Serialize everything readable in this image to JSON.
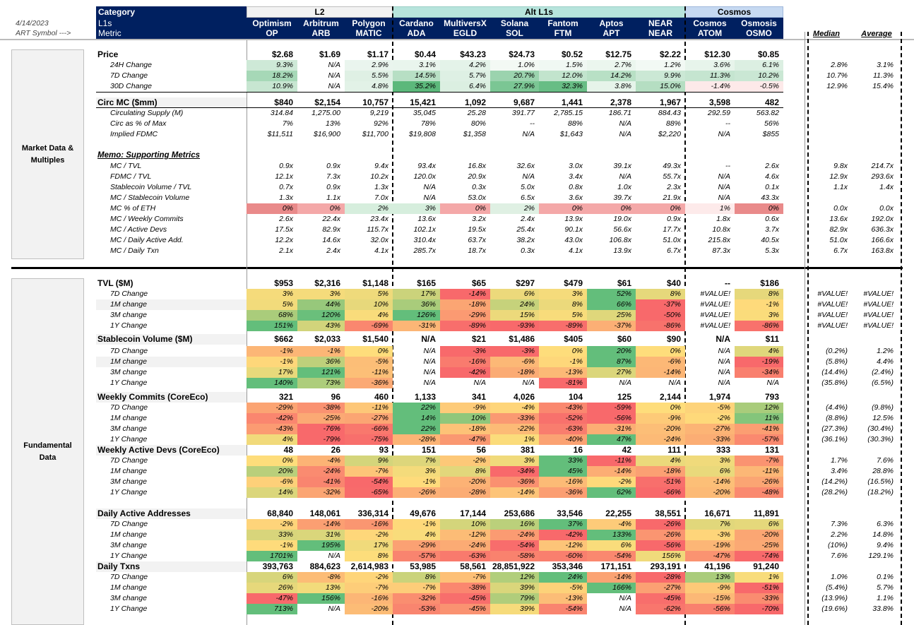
{
  "top": {
    "date": "4/14/2023",
    "symbol_label": "ART Symbol --->",
    "category": "Category",
    "l1s": "L1s",
    "metric": "Metric",
    "groups": [
      "L2",
      "Alt L1s",
      "Cosmos"
    ],
    "median": "Median",
    "average": "Average"
  },
  "assets": [
    {
      "name": "Optimism",
      "ticker": "OP"
    },
    {
      "name": "Arbitrum",
      "ticker": "ARB"
    },
    {
      "name": "Polygon",
      "ticker": "MATIC"
    },
    {
      "name": "Cardano",
      "ticker": "ADA"
    },
    {
      "name": "MultiversX",
      "ticker": "EGLD"
    },
    {
      "name": "Solana",
      "ticker": "SOL"
    },
    {
      "name": "Fantom",
      "ticker": "FTM"
    },
    {
      "name": "Aptos",
      "ticker": "APT"
    },
    {
      "name": "NEAR",
      "ticker": "NEAR"
    },
    {
      "name": "Cosmos",
      "ticker": "ATOM"
    },
    {
      "name": "Osmosis",
      "ticker": "OSMO"
    }
  ],
  "sections": {
    "market": "Market Data & Multiples",
    "fundamental": "Fundamental Data"
  },
  "colors": {
    "navy": "#002060",
    "l2_band": "#f2f2f2",
    "alt_band": "#b7e4dc",
    "cosmos_band": "#c6d9f1",
    "red": "#e06666",
    "green": "#4caf50"
  },
  "rows": [
    {
      "label": "Price",
      "type": "main",
      "cells": [
        "$2.68",
        "$1.69",
        "$1.17",
        "$0.44",
        "$43.23",
        "$24.73",
        "$0.52",
        "$12.75",
        "$2.22",
        "$12.30",
        "$0.85"
      ]
    },
    {
      "label": "24H Change",
      "type": "sub",
      "cells": [
        "9.3%",
        "N/A",
        "2.9%",
        "3.1%",
        "4.2%",
        "1.0%",
        "1.5%",
        "2.7%",
        "1.2%",
        "3.6%",
        "6.1%"
      ],
      "median": "2.8%",
      "average": "3.1%"
    },
    {
      "label": "7D Change",
      "type": "sub",
      "cells": [
        "18.2%",
        "N/A",
        "5.5%",
        "14.5%",
        "5.7%",
        "20.7%",
        "12.0%",
        "14.2%",
        "9.9%",
        "11.3%",
        "10.2%"
      ],
      "median": "10.7%",
      "average": "11.3%"
    },
    {
      "label": "30D Change",
      "type": "sub",
      "cells": [
        "10.9%",
        "N/A",
        "4.8%",
        "35.2%",
        "6.4%",
        "27.9%",
        "32.3%",
        "3.8%",
        "15.0%",
        "-1.4%",
        "-0.5%"
      ],
      "median": "12.9%",
      "average": "15.4%"
    },
    {
      "label": "Circ MC ($mm)",
      "type": "main",
      "cells": [
        "$840",
        "$2,154",
        "10,757",
        "15,421",
        "1,092",
        "9,687",
        "1,441",
        "2,378",
        "1,967",
        "3,598",
        "482"
      ]
    },
    {
      "label": "Circulating Supply (M)",
      "type": "sub",
      "cells": [
        "314.84",
        "1,275.00",
        "9,219",
        "35,045",
        "25.28",
        "391.77",
        "2,785.15",
        "186.71",
        "884.43",
        "292.59",
        "563.82"
      ]
    },
    {
      "label": "Circ as % of Max",
      "type": "sub",
      "cells": [
        "7%",
        "13%",
        "92%",
        "78%",
        "80%",
        "--",
        "88%",
        "N/A",
        "88%",
        "--",
        "56%"
      ]
    },
    {
      "label": "Implied FDMC",
      "type": "sub",
      "cells": [
        "$11,511",
        "$16,900",
        "$11,700",
        "$19,808",
        "$1,358",
        "N/A",
        "$1,643",
        "N/A",
        "$2,220",
        "N/A",
        "$855"
      ]
    },
    {
      "label": "Memo: Supporting Metrics",
      "type": "memo"
    },
    {
      "label": "MC / TVL",
      "type": "sub",
      "cells": [
        "0.9x",
        "0.9x",
        "9.4x",
        "93.4x",
        "16.8x",
        "32.6x",
        "3.0x",
        "39.1x",
        "49.3x",
        "--",
        "2.6x"
      ],
      "median": "9.8x",
      "average": "214.7x"
    },
    {
      "label": "FDMC / TVL",
      "type": "sub",
      "cells": [
        "12.1x",
        "7.3x",
        "10.2x",
        "120.0x",
        "20.9x",
        "N/A",
        "3.4x",
        "N/A",
        "55.7x",
        "N/A",
        "4.6x"
      ],
      "median": "12.9x",
      "average": "293.6x"
    },
    {
      "label": "Stablecoin Volume / TVL",
      "type": "sub",
      "cells": [
        "0.7x",
        "0.9x",
        "1.3x",
        "N/A",
        "0.3x",
        "5.0x",
        "0.8x",
        "1.0x",
        "2.3x",
        "N/A",
        "0.1x"
      ],
      "median": "1.1x",
      "average": "1.4x"
    },
    {
      "label": "MC / Stablecoin Volume",
      "type": "sub",
      "cells": [
        "1.3x",
        "1.1x",
        "7.0x",
        "N/A",
        "53.0x",
        "6.5x",
        "3.6x",
        "39.7x",
        "21.9x",
        "N/A",
        "43.3x"
      ]
    },
    {
      "label": "MC % of ETH",
      "type": "sub",
      "cells": [
        "0%",
        "0%",
        "2%",
        "3%",
        "0%",
        "2%",
        "0%",
        "0%",
        "0%",
        "1%",
        "0%"
      ],
      "median": "0.0x",
      "average": "0.0x"
    },
    {
      "label": "MC / Weekly Commits",
      "type": "sub",
      "cells": [
        "2.6x",
        "22.4x",
        "23.4x",
        "13.6x",
        "3.2x",
        "2.4x",
        "13.9x",
        "19.0x",
        "0.9x",
        "1.8x",
        "0.6x"
      ],
      "median": "13.6x",
      "average": "192.0x"
    },
    {
      "label": "MC / Active Devs",
      "type": "sub",
      "cells": [
        "17.5x",
        "82.9x",
        "115.7x",
        "102.1x",
        "19.5x",
        "25.4x",
        "90.1x",
        "56.6x",
        "17.7x",
        "10.8x",
        "3.7x"
      ],
      "median": "82.9x",
      "average": "636.3x"
    },
    {
      "label": "MC / Daily Active Add.",
      "type": "sub",
      "cells": [
        "12.2x",
        "14.6x",
        "32.0x",
        "310.4x",
        "63.7x",
        "38.2x",
        "43.0x",
        "106.8x",
        "51.0x",
        "215.8x",
        "40.5x"
      ],
      "median": "51.0x",
      "average": "166.6x"
    },
    {
      "label": "MC / Daily Txn",
      "type": "sub",
      "cells": [
        "2.1x",
        "2.4x",
        "4.1x",
        "285.7x",
        "18.7x",
        "0.3x",
        "4.1x",
        "13.9x",
        "6.7x",
        "87.3x",
        "5.3x"
      ],
      "median": "6.7x",
      "average": "163.8x"
    },
    {
      "label": "TVL ($M)",
      "type": "main",
      "cells": [
        "$953",
        "$2,316",
        "$1,148",
        "$165",
        "$65",
        "$297",
        "$479",
        "$61",
        "$40",
        "--",
        "$186"
      ]
    },
    {
      "label": "7D Change",
      "type": "sub",
      "cells": [
        "3%",
        "3%",
        "5%",
        "17%",
        "-14%",
        "6%",
        "3%",
        "52%",
        "8%",
        "#VALUE!",
        "8%"
      ],
      "median": "#VALUE!",
      "average": "#VALUE!"
    },
    {
      "label": "1M change",
      "type": "sub",
      "cells": [
        "5%",
        "44%",
        "10%",
        "36%",
        "-18%",
        "24%",
        "8%",
        "66%",
        "-37%",
        "#VALUE!",
        "-1%"
      ],
      "median": "#VALUE!",
      "average": "#VALUE!"
    },
    {
      "label": "3M change",
      "type": "sub",
      "cells": [
        "68%",
        "120%",
        "4%",
        "126%",
        "-29%",
        "15%",
        "5%",
        "25%",
        "-50%",
        "#VALUE!",
        "3%"
      ],
      "median": "#VALUE!",
      "average": "#VALUE!"
    },
    {
      "label": "1Y Change",
      "type": "sub",
      "cells": [
        "151%",
        "43%",
        "-69%",
        "-31%",
        "-89%",
        "-93%",
        "-89%",
        "-37%",
        "-86%",
        "#VALUE!",
        "-86%"
      ],
      "median": "#VALUE!",
      "average": "#VALUE!"
    },
    {
      "label": "Stablecoin Volume ($M)",
      "type": "main",
      "cells": [
        "$662",
        "$2,033",
        "$1,540",
        "N/A",
        "$21",
        "$1,486",
        "$405",
        "$60",
        "$90",
        "N/A",
        "$11"
      ]
    },
    {
      "label": "7D Change",
      "type": "sub",
      "cells": [
        "-1%",
        "-1%",
        "0%",
        "N/A",
        "-3%",
        "-3%",
        "0%",
        "20%",
        "0%",
        "N/A",
        "4%"
      ],
      "median": "(0.2%)",
      "average": "1.2%"
    },
    {
      "label": "1M change",
      "type": "sub",
      "cells": [
        "-1%",
        "36%",
        "-5%",
        "N/A",
        "-16%",
        "-6%",
        "-1%",
        "87%",
        "-6%",
        "N/A",
        "-19%"
      ],
      "median": "(5.8%)",
      "average": "4.4%"
    },
    {
      "label": "3M change",
      "type": "sub",
      "cells": [
        "17%",
        "121%",
        "-11%",
        "N/A",
        "-42%",
        "-18%",
        "-13%",
        "27%",
        "-14%",
        "N/A",
        "-34%"
      ],
      "median": "(14.4%)",
      "average": "(2.4%)"
    },
    {
      "label": "1Y Change",
      "type": "sub",
      "cells": [
        "140%",
        "73%",
        "-36%",
        "N/A",
        "N/A",
        "N/A",
        "-81%",
        "N/A",
        "N/A",
        "N/A",
        "N/A"
      ],
      "median": "(35.8%)",
      "average": "(6.5%)"
    },
    {
      "label": "Weekly Commits (CoreEco)",
      "type": "main",
      "cells": [
        "321",
        "96",
        "460",
        "1,133",
        "341",
        "4,026",
        "104",
        "125",
        "2,144",
        "1,974",
        "793"
      ]
    },
    {
      "label": "7D Change",
      "type": "sub",
      "cells": [
        "-29%",
        "-38%",
        "-11%",
        "22%",
        "-9%",
        "-4%",
        "-43%",
        "-59%",
        "0%",
        "-5%",
        "12%"
      ],
      "median": "(4.4%)",
      "average": "(9.8%)"
    },
    {
      "label": "1M change",
      "type": "sub",
      "cells": [
        "-42%",
        "-25%",
        "-27%",
        "14%",
        "10%",
        "-33%",
        "-52%",
        "-56%",
        "-9%",
        "-2%",
        "11%"
      ],
      "median": "(8.8%)",
      "average": "12.5%"
    },
    {
      "label": "3M change",
      "type": "sub",
      "cells": [
        "-43%",
        "-76%",
        "-66%",
        "22%",
        "-18%",
        "-22%",
        "-63%",
        "-31%",
        "-20%",
        "-27%",
        "-41%"
      ],
      "median": "(27.3%)",
      "average": "(30.4%)"
    },
    {
      "label": "1Y Change",
      "type": "sub",
      "cells": [
        "4%",
        "-79%",
        "-75%",
        "-28%",
        "-47%",
        "1%",
        "-40%",
        "47%",
        "-24%",
        "-33%",
        "-57%"
      ],
      "median": "(36.1%)",
      "average": "(30.3%)"
    },
    {
      "label": "Weekly Active Devs (CoreEco)",
      "type": "main",
      "cells": [
        "48",
        "26",
        "93",
        "151",
        "56",
        "381",
        "16",
        "42",
        "111",
        "333",
        "131"
      ]
    },
    {
      "label": "7D Change",
      "type": "sub",
      "cells": [
        "0%",
        "-4%",
        "9%",
        "7%",
        "-2%",
        "3%",
        "33%",
        "-11%",
        "4%",
        "3%",
        "-7%"
      ],
      "median": "1.7%",
      "average": "7.6%"
    },
    {
      "label": "1M change",
      "type": "sub",
      "cells": [
        "20%",
        "-24%",
        "-7%",
        "3%",
        "8%",
        "-34%",
        "45%",
        "-14%",
        "-18%",
        "6%",
        "-11%"
      ],
      "median": "3.4%",
      "average": "28.8%"
    },
    {
      "label": "3M change",
      "type": "sub",
      "cells": [
        "-6%",
        "-41%",
        "-54%",
        "-1%",
        "-20%",
        "-36%",
        "-16%",
        "-2%",
        "-51%",
        "-14%",
        "-26%"
      ],
      "median": "(14.2%)",
      "average": "(16.5%)"
    },
    {
      "label": "1Y Change",
      "type": "sub",
      "cells": [
        "14%",
        "-32%",
        "-65%",
        "-26%",
        "-28%",
        "-14%",
        "-36%",
        "62%",
        "-66%",
        "-20%",
        "-48%"
      ],
      "median": "(28.2%)",
      "average": "(18.2%)"
    },
    {
      "label": "Daily Active Addresses",
      "type": "main",
      "cells": [
        "68,840",
        "148,061",
        "336,314",
        "49,676",
        "17,144",
        "253,686",
        "33,546",
        "22,255",
        "38,551",
        "16,671",
        "11,891"
      ]
    },
    {
      "label": "7D Change",
      "type": "sub",
      "cells": [
        "-2%",
        "-14%",
        "-16%",
        "-1%",
        "10%",
        "16%",
        "37%",
        "-4%",
        "-26%",
        "7%",
        "6%"
      ],
      "median": "7.3%",
      "average": "6.3%"
    },
    {
      "label": "1M change",
      "type": "sub",
      "cells": [
        "33%",
        "31%",
        "-2%",
        "4%",
        "-12%",
        "-24%",
        "-42%",
        "133%",
        "-26%",
        "-3%",
        "-20%"
      ],
      "median": "2.2%",
      "average": "14.8%"
    },
    {
      "label": "3M change",
      "type": "sub",
      "cells": [
        "-1%",
        "195%",
        "17%",
        "-29%",
        "-24%",
        "-54%",
        "-12%",
        "6%",
        "-56%",
        "-19%",
        "-25%"
      ],
      "median": "(10%)",
      "average": "9.4%"
    },
    {
      "label": "1Y Change",
      "type": "sub",
      "cells": [
        "1701%",
        "N/A",
        "8%",
        "-57%",
        "-63%",
        "-58%",
        "-60%",
        "-54%",
        "156%",
        "-47%",
        "-74%"
      ],
      "median": "7.6%",
      "average": "129.1%"
    },
    {
      "label": "Daily Txns",
      "type": "main",
      "cells": [
        "393,763",
        "884,623",
        "2,614,983",
        "53,985",
        "58,561",
        "28,851,922",
        "353,346",
        "171,151",
        "293,191",
        "41,196",
        "91,240"
      ]
    },
    {
      "label": "7D Change",
      "type": "sub",
      "cells": [
        "6%",
        "-8%",
        "-2%",
        "8%",
        "-7%",
        "12%",
        "24%",
        "-14%",
        "-28%",
        "13%",
        "1%"
      ],
      "median": "1.0%",
      "average": "0.1%"
    },
    {
      "label": "1M change",
      "type": "sub",
      "cells": [
        "26%",
        "13%",
        "-7%",
        "-7%",
        "-38%",
        "39%",
        "-5%",
        "166%",
        "-27%",
        "-9%",
        "-51%"
      ],
      "median": "(5.4%)",
      "average": "5.7%"
    },
    {
      "label": "3M change",
      "type": "sub",
      "cells": [
        "-47%",
        "156%",
        "-16%",
        "-32%",
        "-45%",
        "79%",
        "-13%",
        "N/A",
        "-45%",
        "-15%",
        "-33%"
      ],
      "median": "(13.9%)",
      "average": "1.1%"
    },
    {
      "label": "1Y Change",
      "type": "sub",
      "cells": [
        "713%",
        "N/A",
        "-20%",
        "-53%",
        "-45%",
        "39%",
        "-54%",
        "N/A",
        "-62%",
        "-56%",
        "-70%"
      ],
      "median": "(19.6%)",
      "average": "33.8%"
    }
  ]
}
